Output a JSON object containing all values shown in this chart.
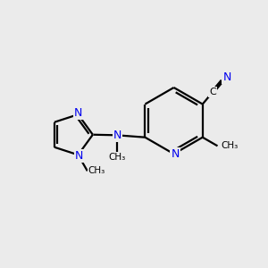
{
  "background_color": "#ebebeb",
  "bond_color": "#000000",
  "nitrogen_color": "#0000ee",
  "line_width": 1.6,
  "figsize": [
    3.0,
    3.0
  ],
  "dpi": 100,
  "xlim": [
    0,
    10
  ],
  "ylim": [
    0,
    10
  ]
}
